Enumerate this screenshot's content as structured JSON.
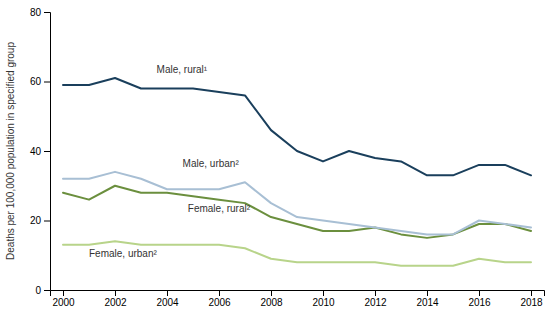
{
  "chart_data": {
    "type": "line",
    "ylabel": "Deaths per 100,000 population in specified group",
    "x": [
      2000,
      2001,
      2002,
      2003,
      2004,
      2005,
      2006,
      2007,
      2008,
      2009,
      2010,
      2011,
      2012,
      2013,
      2014,
      2015,
      2016,
      2017,
      2018
    ],
    "series": [
      {
        "color": "#1a3f5c",
        "values": [
          59,
          59,
          61,
          58,
          58,
          58,
          57,
          56,
          46,
          40,
          37,
          40,
          38,
          37,
          33,
          33,
          36,
          36,
          33
        ]
      },
      {
        "color": "#a8bfd4",
        "values": [
          32,
          32,
          34,
          32,
          29,
          29,
          29,
          31,
          25,
          21,
          20,
          19,
          18,
          17,
          16,
          16,
          20,
          19,
          18
        ]
      },
      {
        "color": "#6b8f3e",
        "values": [
          28,
          26,
          30,
          28,
          28,
          27,
          26,
          25,
          21,
          19,
          17,
          17,
          18,
          16,
          15,
          16,
          19,
          19,
          17
        ]
      },
      {
        "color": "#b8d48a",
        "values": [
          13,
          13,
          14,
          13,
          13,
          13,
          13,
          12,
          9,
          8,
          8,
          8,
          8,
          7,
          7,
          7,
          9,
          8,
          8
        ]
      }
    ],
    "annotations": [
      {
        "text": "Male, rural¹",
        "x": 2003.6,
        "y": 62.5
      },
      {
        "text": "Male, urban²",
        "x": 2004.6,
        "y": 35.5
      },
      {
        "text": "Female, rural²",
        "x": 2004.8,
        "y": 22.5
      },
      {
        "text": "Female, urban²",
        "x": 2001.0,
        "y": 9.5
      }
    ],
    "xlim": [
      1999.5,
      2018.5
    ],
    "xticks": [
      2000,
      2002,
      2004,
      2006,
      2008,
      2010,
      2012,
      2014,
      2016,
      2018
    ],
    "ylim": [
      0,
      80
    ],
    "yticks": [
      0,
      20,
      40,
      60,
      80
    ],
    "grid": false
  }
}
